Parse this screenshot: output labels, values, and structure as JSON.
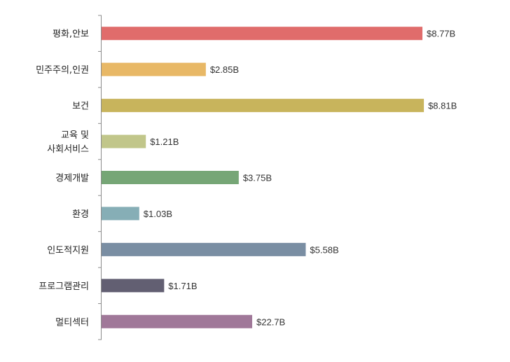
{
  "chart_data": {
    "type": "bar",
    "orientation": "horizontal",
    "categories": [
      [
        "평화,안보"
      ],
      [
        "민주주의,인권"
      ],
      [
        "보건"
      ],
      [
        "교육  및",
        "사회서비스"
      ],
      [
        "경제개발"
      ],
      [
        "환경"
      ],
      [
        "인도적지원"
      ],
      [
        "프로그램관리"
      ],
      [
        "멀티섹터"
      ]
    ],
    "values": [
      8.77,
      2.85,
      8.81,
      1.21,
      3.75,
      1.03,
      5.58,
      1.71,
      22.7
    ],
    "value_labels": [
      "$8.77B",
      "$2.85B",
      "$8.81B",
      "$1.21B",
      "$3.75B",
      "$1.03B",
      "$5.58B",
      "$1.71B",
      "$22.7B"
    ],
    "colors": [
      "#e06c6b",
      "#e8b866",
      "#c8b45c",
      "#c1c68a",
      "#76a676",
      "#86aeb6",
      "#7a8ea3",
      "#625f72",
      "#a07899"
    ],
    "grid": false,
    "legend": "none"
  }
}
